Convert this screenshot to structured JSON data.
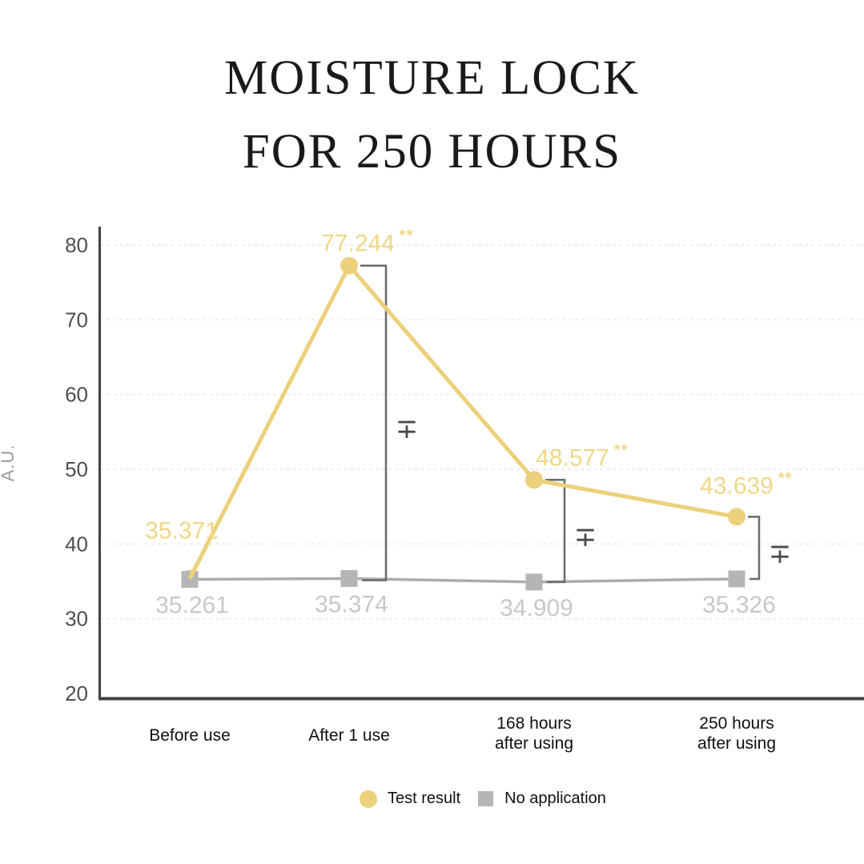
{
  "title": {
    "line1": "MOISTURE LOCK",
    "line2": "FOR 250 HOURS"
  },
  "chart_data": {
    "type": "line",
    "title": "MOISTURE LOCK FOR 250 HOURS",
    "ylabel": "A.U.",
    "xlabel": "",
    "yticks": [
      20,
      30,
      40,
      50,
      60,
      70,
      80
    ],
    "ylim": [
      20,
      84
    ],
    "grid": true,
    "legend_position": "bottom",
    "categories": [
      "Before use",
      "After 1 use",
      "168 hours\nafter using",
      "250 hours\nafter using"
    ],
    "series": [
      {
        "name": "Test result",
        "marker": "circle",
        "color": "#ecd07a",
        "label_color": "#f0d787",
        "values": [
          35.371,
          77.244,
          48.577,
          43.639
        ],
        "value_labels": [
          "35.371",
          "77.244",
          "48.577",
          "43.639"
        ],
        "significance": [
          "",
          "**",
          "**",
          "**"
        ]
      },
      {
        "name": "No application",
        "marker": "square",
        "color": "#acacac",
        "marker_color": "#b5b5b5",
        "label_color": "#c8c8c8",
        "values": [
          35.261,
          35.374,
          34.909,
          35.326
        ],
        "value_labels": [
          "35.261",
          "35.374",
          "34.909",
          "35.326"
        ],
        "significance": [
          "",
          "",
          "",
          ""
        ]
      }
    ],
    "significance_symbol": "∓",
    "colors": {
      "axis": "#414141",
      "grid": "#e7e7e7",
      "tick_label": "#4f4f4f",
      "bracket": "#6a6a6a",
      "significance_symbol": "#4a4a4a",
      "category_label": "#0f0f0f",
      "y_axis_title": "#9a9a9a"
    }
  }
}
